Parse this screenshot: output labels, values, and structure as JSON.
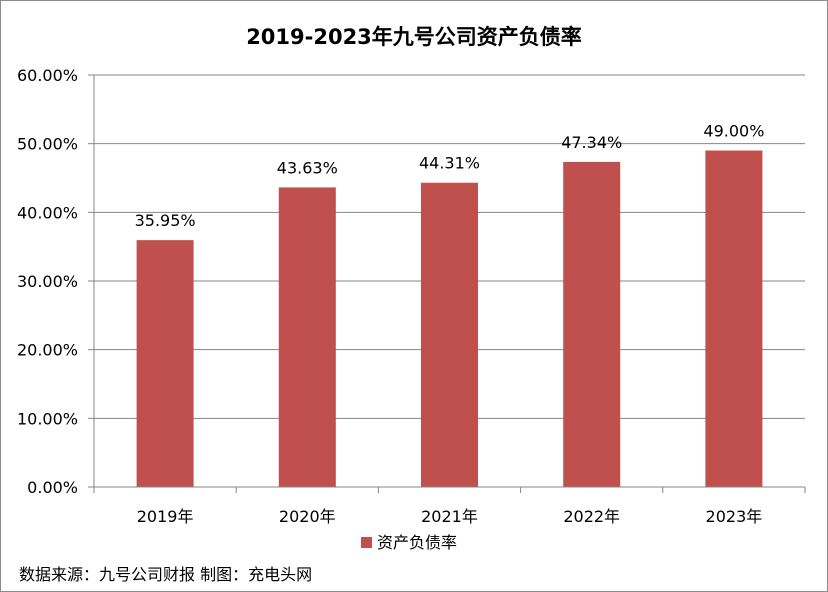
{
  "chart_data": {
    "type": "bar",
    "title": "2019-2023年九号公司资产负债率",
    "categories": [
      "2019年",
      "2020年",
      "2021年",
      "2022年",
      "2023年"
    ],
    "series": [
      {
        "name": "资产负债率",
        "values": [
          35.95,
          43.63,
          44.31,
          47.34,
          49.0
        ],
        "labels": [
          "35.95%",
          "43.63%",
          "44.31%",
          "47.34%",
          "49.00%"
        ],
        "color": "#C0504D"
      }
    ],
    "ylim": [
      0,
      60
    ],
    "yticks": [
      "0.00%",
      "10.00%",
      "20.00%",
      "30.00%",
      "40.00%",
      "50.00%",
      "60.00%"
    ],
    "ytick_values": [
      0,
      10,
      20,
      30,
      40,
      50,
      60
    ],
    "grid": true,
    "legend": "bottom"
  },
  "footer": {
    "source": "数据来源：九号公司财报 制图：充电头网"
  },
  "colors": {
    "bar": "#C0504D",
    "grid": "#868686",
    "axis": "#868686"
  }
}
